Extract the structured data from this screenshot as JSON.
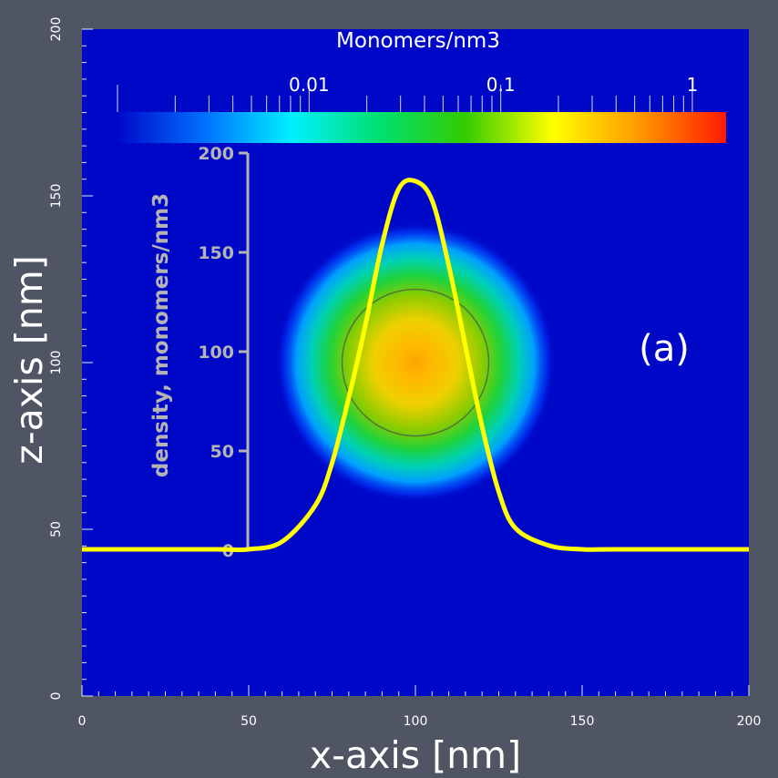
{
  "chart_data": {
    "type": "heatmap",
    "title": "",
    "xlabel": "x-axis [nm]",
    "ylabel": "z-axis [nm]",
    "xlim": [
      0,
      200
    ],
    "ylim": [
      0,
      200
    ],
    "x_ticks": [
      "0",
      "50",
      "100",
      "150",
      "200"
    ],
    "y_ticks": [
      "0",
      "50",
      "100",
      "150",
      "200"
    ],
    "field": {
      "center": {
        "x": 100,
        "z": 100
      },
      "outer_radius_nm": 42,
      "circle_radius_nm": 22,
      "peak_density": 0.3
    },
    "colorbar": {
      "label": "Monomers/nm3",
      "scale": "log",
      "range": [
        0.001,
        1.5
      ],
      "ticks": [
        "0.01",
        "0.1",
        "1"
      ],
      "tick_values": [
        0.01,
        0.1,
        1
      ],
      "colors": [
        "#0008c8",
        "#0070ff",
        "#00f0ff",
        "#00e070",
        "#33cc00",
        "#ffff00",
        "#ff9900",
        "#ff1a00"
      ]
    },
    "density_profile": {
      "color": "#ffff00",
      "axis_label": "density, monomers/nm3",
      "axis_ticks": [
        "0",
        "50",
        "100",
        "150",
        "200"
      ],
      "axis_range": [
        0,
        200
      ],
      "baseline_z_nm": 44,
      "z_per_density_unit": 0.575,
      "x_nm": [
        0,
        40,
        50,
        60,
        70,
        75,
        80,
        85,
        90,
        95,
        100,
        105,
        110,
        115,
        120,
        125,
        130,
        140,
        150,
        160,
        200
      ],
      "density": [
        0,
        0,
        0,
        4,
        23,
        45,
        79,
        117,
        159,
        188,
        192,
        182,
        148,
        106,
        64,
        30,
        11,
        2,
        0,
        0,
        0
      ]
    },
    "annotation": "(a)"
  }
}
